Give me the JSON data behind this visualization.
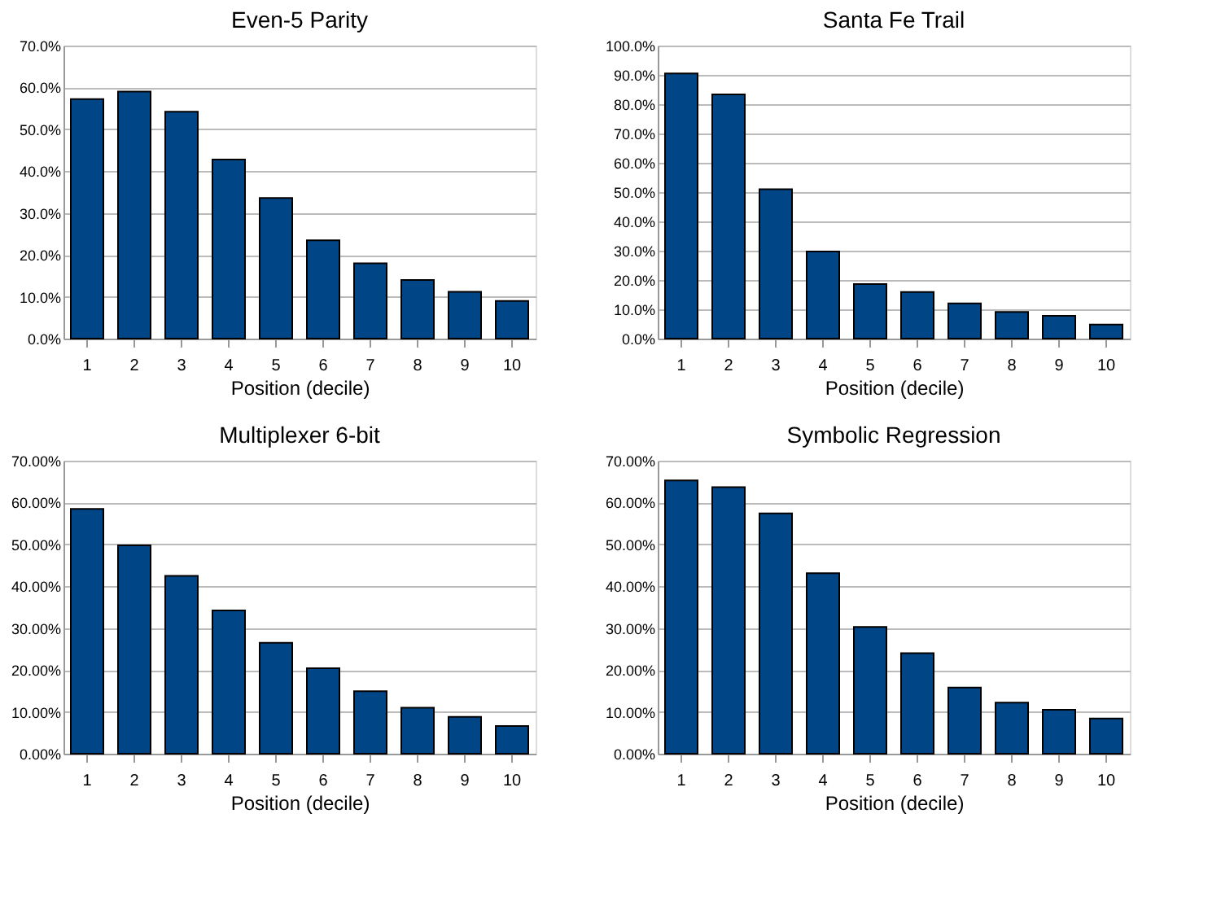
{
  "chart_data": [
    {
      "type": "bar",
      "title": "Even-5 Parity",
      "xlabel": "Position (decile)",
      "categories": [
        "1",
        "2",
        "3",
        "4",
        "5",
        "6",
        "7",
        "8",
        "9",
        "10"
      ],
      "values": [
        57.2,
        59,
        54.2,
        42.8,
        33.6,
        23.5,
        18,
        14,
        11.2,
        9
      ],
      "color": "#004586",
      "ylim": [
        0,
        70
      ],
      "yticks": [
        {
          "value": 0,
          "label": "0.0%"
        },
        {
          "value": 10,
          "label": "10.0%"
        },
        {
          "value": 20,
          "label": "20.0%"
        },
        {
          "value": 30,
          "label": "30.0%"
        },
        {
          "value": 40,
          "label": "40.0%"
        },
        {
          "value": 50,
          "label": "50.0%"
        },
        {
          "value": 60,
          "label": "60.0%"
        },
        {
          "value": 70,
          "label": "70.0%"
        }
      ],
      "grid": "y"
    },
    {
      "type": "bar",
      "title": "Santa Fe Trail",
      "xlabel": "Position (decile)",
      "categories": [
        "1",
        "2",
        "3",
        "4",
        "5",
        "6",
        "7",
        "8",
        "9",
        "10"
      ],
      "values": [
        90.5,
        83.3,
        51,
        29.7,
        18.6,
        15.9,
        12,
        9.1,
        7.8,
        4.8
      ],
      "color": "#004586",
      "ylim": [
        0,
        100
      ],
      "yticks": [
        {
          "value": 0,
          "label": "0.0%"
        },
        {
          "value": 10,
          "label": "10.0%"
        },
        {
          "value": 20,
          "label": "20.0%"
        },
        {
          "value": 30,
          "label": "30.0%"
        },
        {
          "value": 40,
          "label": "40.0%"
        },
        {
          "value": 50,
          "label": "50.0%"
        },
        {
          "value": 60,
          "label": "60.0%"
        },
        {
          "value": 70,
          "label": "70.0%"
        },
        {
          "value": 80,
          "label": "80.0%"
        },
        {
          "value": 90,
          "label": "90.0%"
        },
        {
          "value": 100,
          "label": "100.0%"
        }
      ],
      "grid": "y"
    },
    {
      "type": "bar",
      "title": "Multiplexer 6-bit",
      "xlabel": "Position (decile)",
      "categories": [
        "1",
        "2",
        "3",
        "4",
        "5",
        "6",
        "7",
        "8",
        "9",
        "10"
      ],
      "values": [
        58.5,
        49.8,
        42.5,
        34.2,
        26.5,
        20.4,
        14.9,
        11,
        8.8,
        6.6
      ],
      "color": "#004586",
      "ylim": [
        0,
        70
      ],
      "yticks": [
        {
          "value": 0,
          "label": "0.00%"
        },
        {
          "value": 10,
          "label": "10.00%"
        },
        {
          "value": 20,
          "label": "20.00%"
        },
        {
          "value": 30,
          "label": "30.00%"
        },
        {
          "value": 40,
          "label": "40.00%"
        },
        {
          "value": 50,
          "label": "50.00%"
        },
        {
          "value": 60,
          "label": "60.00%"
        },
        {
          "value": 70,
          "label": "70.00%"
        }
      ],
      "grid": "y"
    },
    {
      "type": "bar",
      "title": "Symbolic Regression",
      "xlabel": "Position (decile)",
      "categories": [
        "1",
        "2",
        "3",
        "4",
        "5",
        "6",
        "7",
        "8",
        "9",
        "10"
      ],
      "values": [
        65.3,
        63.7,
        57.4,
        43.1,
        30.3,
        24,
        15.8,
        12.2,
        10.5,
        8.4
      ],
      "color": "#004586",
      "ylim": [
        0,
        70
      ],
      "yticks": [
        {
          "value": 0,
          "label": "0.00%"
        },
        {
          "value": 10,
          "label": "10.00%"
        },
        {
          "value": 20,
          "label": "20.00%"
        },
        {
          "value": 30,
          "label": "30.00%"
        },
        {
          "value": 40,
          "label": "40.00%"
        },
        {
          "value": 50,
          "label": "50.00%"
        },
        {
          "value": 60,
          "label": "60.00%"
        },
        {
          "value": 70,
          "label": "70.00%"
        }
      ],
      "grid": "y"
    }
  ]
}
